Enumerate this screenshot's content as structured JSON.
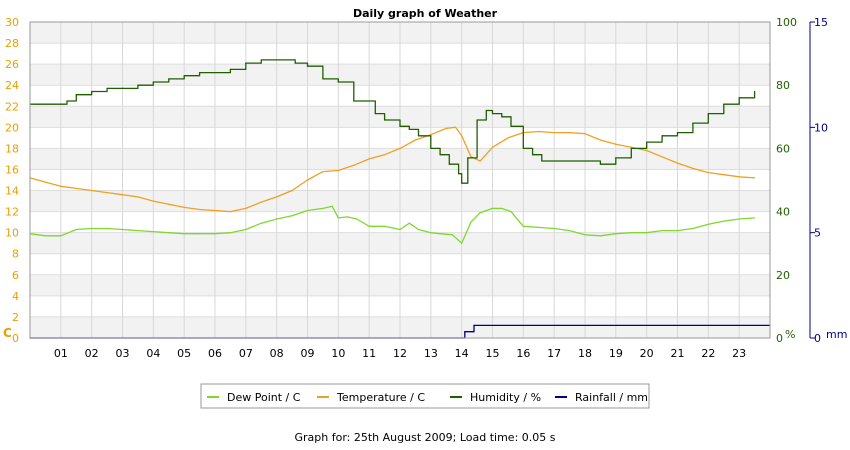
{
  "chart_data": {
    "type": "line",
    "title": "Daily graph of Weather",
    "x_ticks": [
      "01",
      "02",
      "03",
      "04",
      "05",
      "06",
      "07",
      "08",
      "09",
      "10",
      "11",
      "12",
      "13",
      "14",
      "15",
      "16",
      "17",
      "18",
      "19",
      "20",
      "21",
      "22",
      "23"
    ],
    "x_range": [
      0,
      24
    ],
    "axes": {
      "temp": {
        "label": "C",
        "range": [
          0,
          30
        ],
        "ticks": [
          0,
          2,
          4,
          6,
          8,
          10,
          12,
          14,
          16,
          18,
          20,
          22,
          24,
          26,
          28,
          30
        ],
        "color": "#e8a000"
      },
      "humidity": {
        "label": "%",
        "range": [
          0,
          100
        ],
        "ticks": [
          0,
          20,
          40,
          60,
          80,
          100
        ],
        "color": "#1f5f00"
      },
      "rain": {
        "label": "mm",
        "range": [
          0,
          15
        ],
        "ticks": [
          0,
          5,
          10,
          15
        ],
        "color": "#00008b"
      }
    },
    "grid": true,
    "legend_position": "bottom",
    "series": [
      {
        "name": "Dew Point / C",
        "axis": "temp",
        "color": "#7ed82e",
        "x": [
          0,
          0.5,
          1,
          1.5,
          2,
          2.5,
          3,
          3.5,
          4,
          4.5,
          5,
          5.5,
          6,
          6.5,
          7,
          7.5,
          8,
          8.5,
          9,
          9.5,
          9.8,
          10,
          10.3,
          10.6,
          11,
          11.5,
          12,
          12.3,
          12.6,
          13,
          13.3,
          13.7,
          14,
          14.3,
          14.6,
          15,
          15.3,
          15.6,
          16,
          16.5,
          17,
          17.5,
          18,
          18.5,
          19,
          19.5,
          20,
          20.5,
          21,
          21.5,
          22,
          22.5,
          23,
          23.5
        ],
        "values": [
          9.9,
          9.7,
          9.7,
          10.3,
          10.4,
          10.4,
          10.3,
          10.2,
          10.1,
          10.0,
          9.9,
          9.9,
          9.9,
          10.0,
          10.3,
          10.9,
          11.3,
          11.6,
          12.1,
          12.3,
          12.5,
          11.4,
          11.5,
          11.3,
          10.6,
          10.6,
          10.3,
          10.9,
          10.3,
          10.0,
          9.9,
          9.8,
          9.0,
          11.0,
          11.9,
          12.3,
          12.3,
          12.0,
          10.6,
          10.5,
          10.4,
          10.2,
          9.8,
          9.7,
          9.9,
          10.0,
          10.0,
          10.2,
          10.2,
          10.4,
          10.8,
          11.1,
          11.3,
          11.4
        ]
      },
      {
        "name": "Temperature / C",
        "axis": "temp",
        "color": "#f0a020",
        "x": [
          0,
          0.5,
          1,
          1.5,
          2,
          2.5,
          3,
          3.5,
          4,
          4.5,
          5,
          5.5,
          6,
          6.5,
          7,
          7.5,
          8,
          8.5,
          9,
          9.5,
          10,
          10.5,
          11,
          11.5,
          12,
          12.5,
          13,
          13.5,
          13.8,
          14,
          14.3,
          14.6,
          15,
          15.5,
          16,
          16.5,
          17,
          17.5,
          18,
          18.5,
          19,
          19.5,
          20,
          20.5,
          21,
          21.5,
          22,
          22.5,
          23,
          23.5
        ],
        "values": [
          15.2,
          14.8,
          14.4,
          14.2,
          14.0,
          13.8,
          13.6,
          13.4,
          13.0,
          12.7,
          12.4,
          12.2,
          12.1,
          12.0,
          12.3,
          12.9,
          13.4,
          14.0,
          15.0,
          15.8,
          15.9,
          16.4,
          17.0,
          17.4,
          18.0,
          18.8,
          19.3,
          19.9,
          20.0,
          19.2,
          17.2,
          16.8,
          18.1,
          19.0,
          19.5,
          19.6,
          19.5,
          19.5,
          19.4,
          18.8,
          18.4,
          18.1,
          17.8,
          17.2,
          16.6,
          16.1,
          15.7,
          15.5,
          15.3,
          15.2
        ]
      },
      {
        "name": "Humidity / %",
        "axis": "humidity",
        "color": "#1f5f00",
        "x": [
          0,
          0.3,
          0.6,
          1,
          1.2,
          1.5,
          2,
          2.5,
          3,
          3.5,
          4,
          4.5,
          5,
          5.5,
          6,
          6.5,
          7,
          7.5,
          8,
          8.3,
          8.6,
          9,
          9.5,
          10,
          10.5,
          10.8,
          11.2,
          11.5,
          12,
          12.3,
          12.6,
          13,
          13.3,
          13.6,
          13.9,
          14,
          14.2,
          14.5,
          14.8,
          15,
          15.3,
          15.6,
          16,
          16.3,
          16.6,
          17,
          17.5,
          18,
          18.5,
          19,
          19.5,
          20,
          20.5,
          21,
          21.5,
          22,
          22.5,
          23,
          23.5
        ],
        "values": [
          74,
          74,
          74,
          74,
          75,
          77,
          78,
          79,
          79,
          80,
          81,
          82,
          83,
          84,
          84,
          85,
          87,
          88,
          88,
          88,
          87,
          86,
          82,
          81,
          75,
          75,
          71,
          69,
          67,
          66,
          64,
          60,
          58,
          55,
          52,
          49,
          57,
          69,
          72,
          71,
          70,
          67,
          60,
          58,
          56,
          56,
          56,
          56,
          55,
          57,
          60,
          62,
          64,
          65,
          68,
          71,
          74,
          76,
          78
        ]
      },
      {
        "name": "Rainfall / mm",
        "axis": "rain",
        "color": "#00008b",
        "x": [
          0,
          14,
          14.1,
          14.35,
          14.4,
          24
        ],
        "values": [
          0,
          0,
          0.3,
          0.3,
          0.6,
          0.6
        ]
      }
    ]
  },
  "footer_text": "Graph for: 25th August 2009; Load time: 0.05 s"
}
